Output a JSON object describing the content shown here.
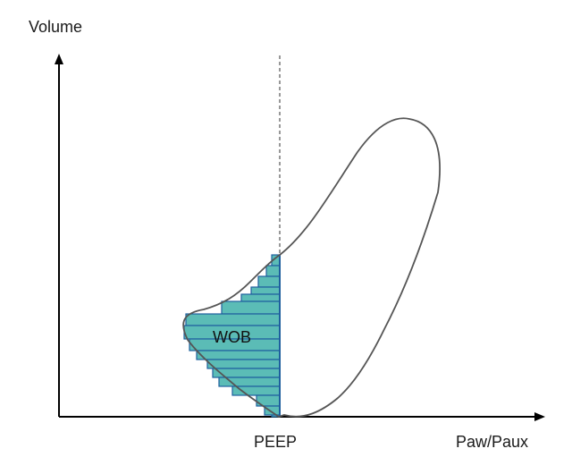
{
  "diagram": {
    "y_axis_label": "Volume",
    "x_axis_label": "Paw/Paux",
    "peep_label": "PEEP",
    "wob_label": "WOB"
  },
  "colors": {
    "axis": "#000000",
    "loop_stroke": "#555555",
    "bar_fill": "#5bbcb6",
    "bar_stroke": "#1f5f9e",
    "dashed_line": "#555555"
  }
}
